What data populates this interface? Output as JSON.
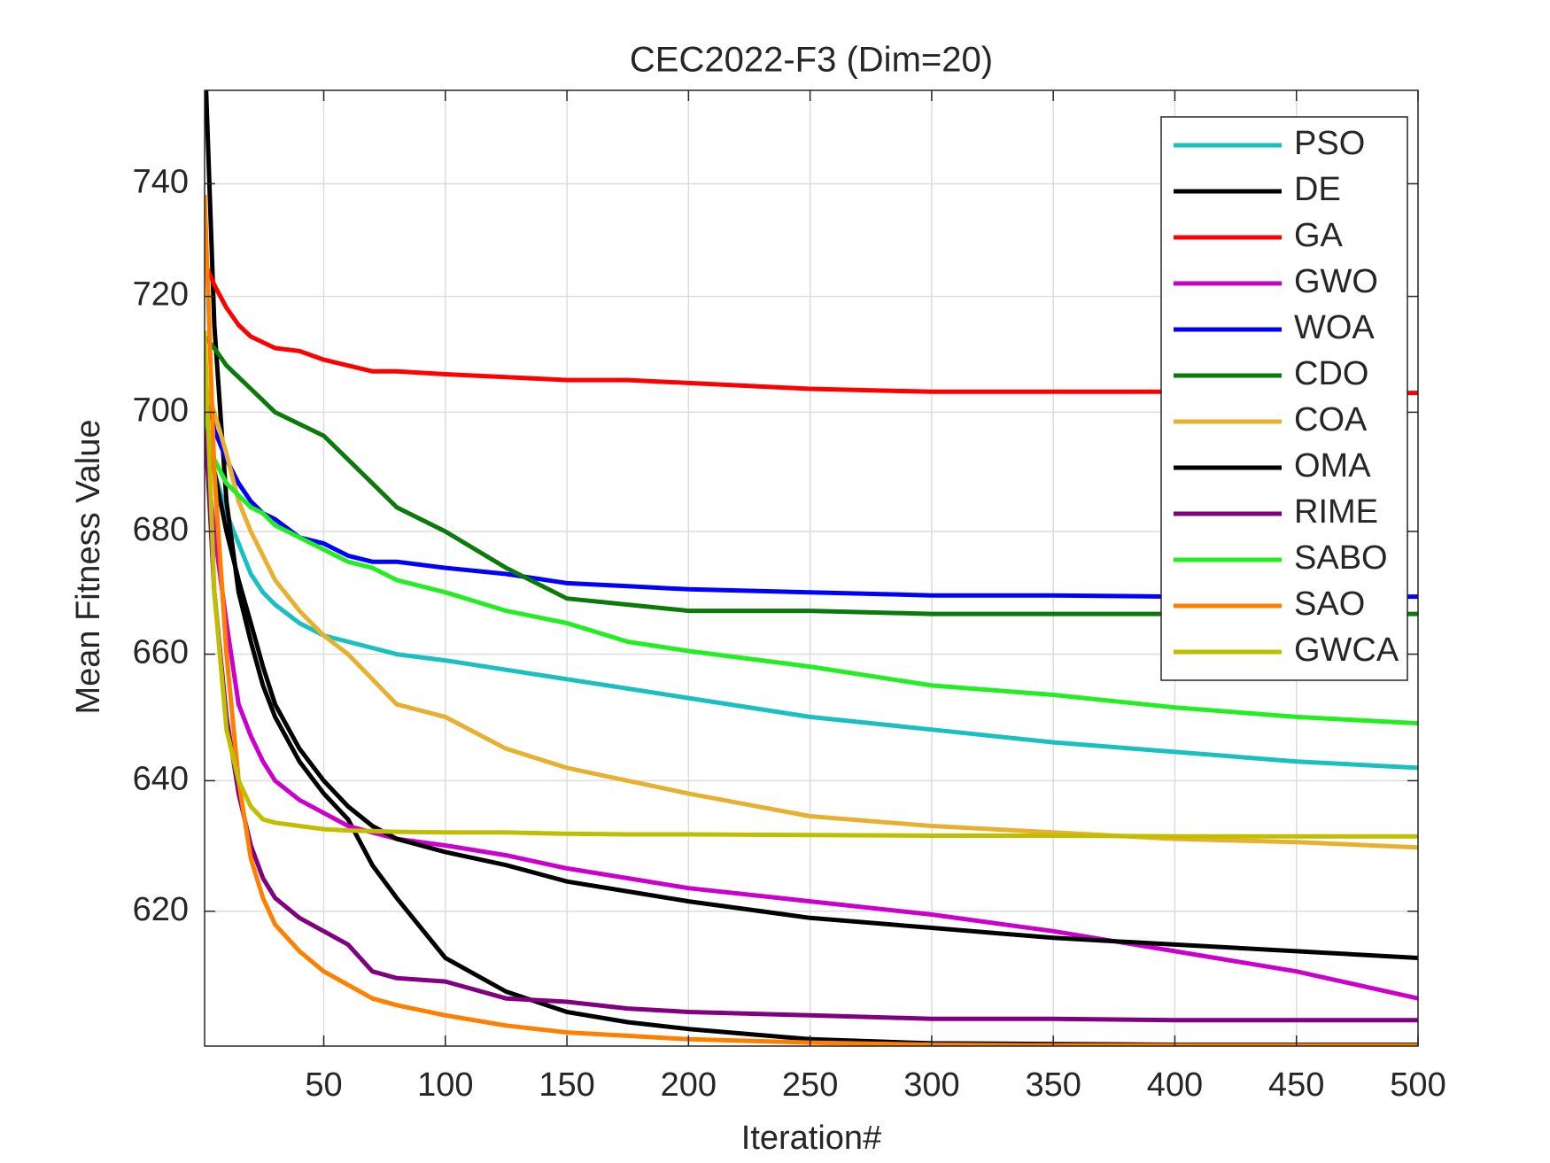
{
  "chart_data": {
    "type": "line",
    "title": "CEC2022-F3 (Dim=20)",
    "xlabel": "Iteration#",
    "ylabel": "Mean Fitness Value",
    "x": [
      1,
      5,
      10,
      15,
      20,
      25,
      30,
      40,
      50,
      60,
      70,
      80,
      100,
      125,
      150,
      175,
      200,
      250,
      300,
      350,
      400,
      450,
      500
    ],
    "xlim": [
      1,
      500
    ],
    "xticks": [
      50,
      100,
      150,
      200,
      250,
      300,
      350,
      400,
      450,
      500
    ],
    "ylim": [
      600,
      757
    ],
    "yticks": [
      620,
      640,
      660,
      680,
      700,
      720,
      740
    ],
    "yscale": "log",
    "grid": true,
    "legend": "northeast",
    "series": [
      {
        "name": "PSO",
        "color": "#1abfbf",
        "values": [
          700,
          690,
          683,
          678,
          673,
          670,
          668,
          665,
          663,
          662,
          661,
          660,
          659,
          657.5,
          656,
          654.5,
          653,
          650,
          648,
          646,
          644.5,
          643,
          642
        ]
      },
      {
        "name": "DE",
        "color": "#000000",
        "values": [
          765,
          715,
          685,
          670,
          662,
          655,
          650,
          643,
          638,
          634,
          627,
          622,
          613,
          608,
          605,
          603.5,
          602.5,
          601,
          600.4,
          600.3,
          600.2,
          600.2,
          600.2
        ]
      },
      {
        "name": "GA",
        "color": "#ff0000",
        "values": [
          726,
          722,
          718,
          715,
          713,
          712,
          711,
          710.5,
          709,
          708,
          707,
          707,
          706.5,
          706,
          705.5,
          705.5,
          705,
          704,
          703.5,
          703.5,
          703.5,
          703.3,
          703.3
        ]
      },
      {
        "name": "GWO",
        "color": "#cc00cc",
        "values": [
          695,
          680,
          665,
          652,
          647,
          643,
          640,
          637,
          635,
          633,
          632,
          631,
          630,
          628.5,
          626.5,
          625,
          623.5,
          621.5,
          619.5,
          617,
          614,
          611,
          607
        ]
      },
      {
        "name": "WOA",
        "color": "#0000ff",
        "values": [
          705,
          697,
          692,
          688,
          685,
          683,
          682,
          679,
          678,
          676,
          675,
          675,
          674,
          673,
          671.5,
          671,
          670.5,
          670,
          669.5,
          669.5,
          669.3,
          669.3,
          669.3
        ]
      },
      {
        "name": "CDO",
        "color": "#0b7a0b",
        "values": [
          713,
          711,
          708,
          706,
          704,
          702,
          700,
          698,
          696,
          692,
          688,
          684,
          680,
          674,
          669,
          668,
          667,
          667,
          666.5,
          666.5,
          666.5,
          666.5,
          666.5
        ]
      },
      {
        "name": "COA",
        "color": "#e8b030",
        "values": [
          705,
          700,
          693,
          685,
          680,
          676,
          672,
          667,
          663,
          660,
          656,
          652,
          650,
          645,
          642,
          640,
          638,
          634.5,
          633,
          632,
          631,
          630.5,
          629.7
        ]
      },
      {
        "name": "OMA",
        "color": "#000000",
        "values": [
          700,
          690,
          680,
          672,
          665,
          658,
          652,
          645,
          640,
          636,
          633,
          631,
          629,
          627,
          624.5,
          623,
          621.5,
          619,
          617.5,
          616,
          615,
          614,
          613
        ]
      },
      {
        "name": "RIME",
        "color": "#800080",
        "values": [
          700,
          670,
          650,
          638,
          630,
          625,
          622,
          619,
          617,
          615,
          611,
          610,
          609.5,
          607,
          606.5,
          605.5,
          605,
          604.5,
          604,
          604,
          603.8,
          603.8,
          603.8
        ]
      },
      {
        "name": "SABO",
        "color": "#22ee22",
        "values": [
          700,
          692,
          688,
          686,
          684,
          683,
          681,
          679,
          677,
          675,
          674,
          672,
          670,
          667,
          665,
          662,
          660.5,
          658,
          655,
          653.5,
          651.5,
          650,
          649
        ]
      },
      {
        "name": "SAO",
        "color": "#ff8000",
        "values": [
          738,
          690,
          660,
          640,
          628,
          622,
          618,
          614,
          611,
          609,
          607,
          606,
          604.5,
          603,
          602,
          601.5,
          601,
          600.5,
          600.2,
          600.1,
          600.1,
          600.1,
          600.1
        ]
      },
      {
        "name": "GWCA",
        "color": "#bfbf00",
        "values": [
          714,
          670,
          648,
          640,
          636,
          634,
          633.5,
          633,
          632.5,
          632.3,
          632.2,
          632.1,
          632,
          632,
          631.8,
          631.7,
          631.7,
          631.6,
          631.5,
          631.5,
          631.4,
          631.4,
          631.4
        ]
      }
    ]
  }
}
